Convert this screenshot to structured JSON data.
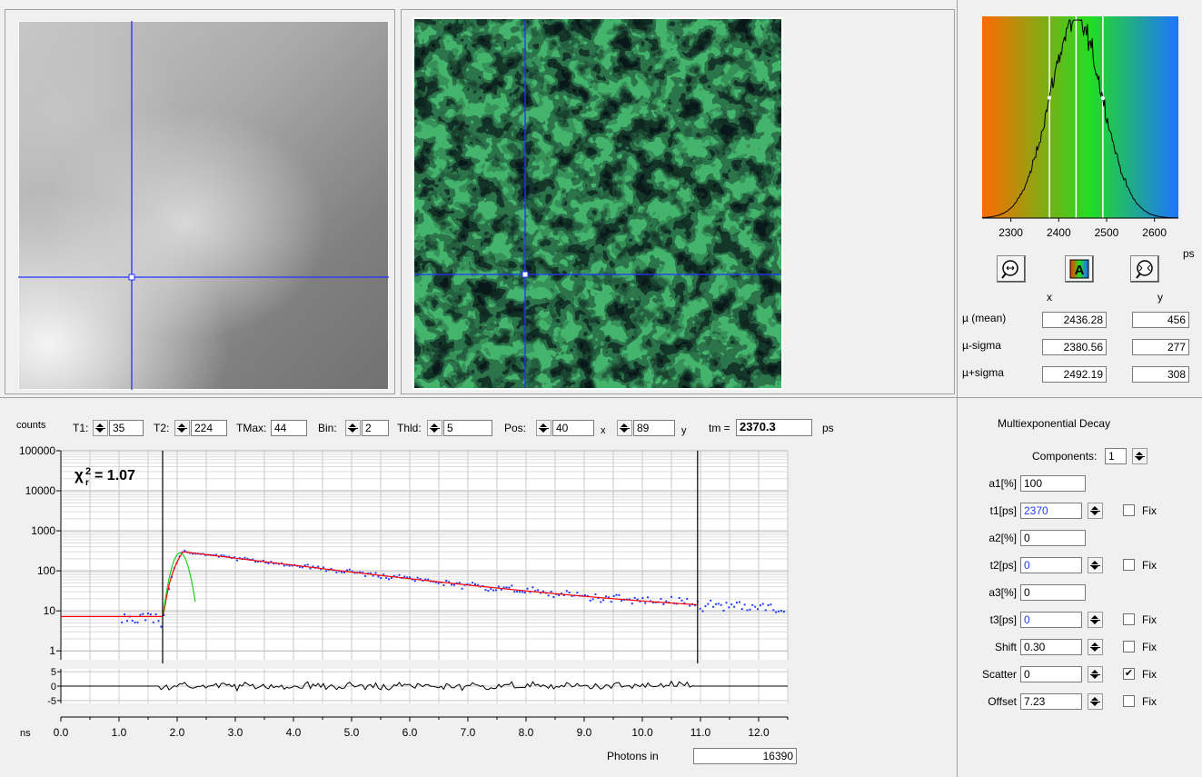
{
  "intensity_panel": {
    "label": "intensity image",
    "cursor": {
      "x": 40,
      "y": 89
    }
  },
  "lifetime_panel": {
    "label": "lifetime image"
  },
  "histogram": {
    "x_ticks": [
      "2300",
      "2400",
      "2500",
      "2600"
    ],
    "unit": "ps",
    "range": [
      2240,
      2650
    ],
    "markers": {
      "mean": 2436.28,
      "minus_sigma": 2380.56,
      "plus_sigma": 2492.19
    },
    "colors": {
      "low": "#ff6a00",
      "mid": "#22dd22",
      "high": "#1e74ff"
    },
    "buttons": {
      "zoom_in": "zoom-in-icon",
      "auto_color": "auto-color-icon",
      "zoom_out": "zoom-out-icon"
    }
  },
  "stats": {
    "col_x": "x",
    "col_y": "y",
    "rows": [
      {
        "label": "µ (mean)",
        "x": "2436.28",
        "y": "456"
      },
      {
        "label": "µ-sigma",
        "x": "2380.56",
        "y": "277"
      },
      {
        "label": "µ+sigma",
        "x": "2492.19",
        "y": "308"
      }
    ]
  },
  "toolbar": {
    "counts_label": "counts",
    "t1_label": "T1:",
    "t1_value": "35",
    "t2_label": "T2:",
    "t2_value": "224",
    "tmax_label": "TMax:",
    "tmax_value": "44",
    "bin_label": "Bin:",
    "bin_value": "2",
    "thld_label": "Thld:",
    "thld_value": "5",
    "pos_label": "Pos:",
    "pos_x": "40",
    "x_label": "x",
    "pos_y": "89",
    "y_label": "y",
    "tm_label": "tm =",
    "tm_value": "2370.3",
    "tm_unit": "ps"
  },
  "chart_data": {
    "type": "scatter",
    "title": "",
    "ylabel": "counts",
    "xlabel": "ns",
    "y_scale": "log",
    "ylim": [
      0.6,
      100000
    ],
    "xlim": [
      0.0,
      12.5
    ],
    "y_ticks": [
      "100000",
      "10000",
      "1000",
      "100",
      "10",
      "1"
    ],
    "x_ticks": [
      "0.0",
      "1.0",
      "2.0",
      "3.0",
      "4.0",
      "5.0",
      "6.0",
      "7.0",
      "8.0",
      "9.0",
      "10.0",
      "11.0",
      "12.0"
    ],
    "chi2_label": "χ",
    "chi2_sub": "r",
    "chi2_sup": "2",
    "chi2_value": "= 1.07",
    "cursor_lines_ns": [
      1.75,
      10.95
    ],
    "residual_ticks": [
      "5",
      "0",
      "-5"
    ],
    "series": [
      {
        "kind": "data_points",
        "color": "#1f3cff",
        "peak": 300,
        "peak_ns": 2.1,
        "tau_ns": 2.37,
        "baseline": 7,
        "start_ns": 1.05,
        "end_ns": 12.45
      },
      {
        "kind": "fit_curve",
        "color": "#ff0000",
        "offset": 7.23
      },
      {
        "kind": "irf",
        "color": "#22cc22",
        "peak_ns": 2.05,
        "peak": 280
      }
    ],
    "grid": true
  },
  "photons": {
    "label": "Photons in",
    "value": "16390"
  },
  "decay": {
    "title": "Multiexponential Decay",
    "components_label": "Components:",
    "components_value": "1",
    "fix_label": "Fix",
    "rows": [
      {
        "label": "a1[%]",
        "value": "100",
        "blue": false,
        "spin": false,
        "fix": null
      },
      {
        "label": "t1[ps]",
        "value": "2370",
        "blue": true,
        "spin": true,
        "fix": false
      },
      {
        "label": "a2[%]",
        "value": "0",
        "blue": false,
        "spin": false,
        "fix": null
      },
      {
        "label": "t2[ps]",
        "value": "0",
        "blue": true,
        "spin": true,
        "fix": false
      },
      {
        "label": "a3[%]",
        "value": "0",
        "blue": false,
        "spin": false,
        "fix": null
      },
      {
        "label": "t3[ps]",
        "value": "0",
        "blue": true,
        "spin": true,
        "fix": false
      },
      {
        "label": "Shift",
        "value": "0.30",
        "blue": false,
        "spin": true,
        "fix": false
      },
      {
        "label": "Scatter",
        "value": "0",
        "blue": false,
        "spin": true,
        "fix": true
      },
      {
        "label": "Offset",
        "value": "7.23",
        "blue": false,
        "spin": true,
        "fix": false
      }
    ]
  }
}
